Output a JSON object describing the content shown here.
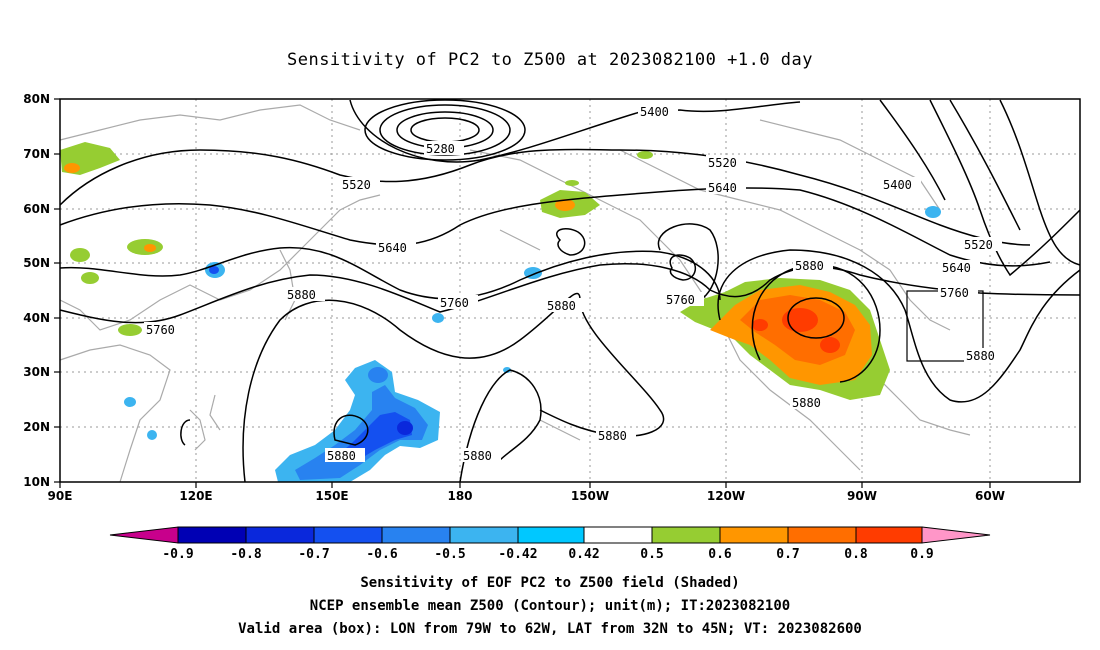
{
  "title": "Sensitivity of PC2 to Z500 at 2023082100 +1.0 day",
  "axes": {
    "lat_labels": [
      "80N",
      "70N",
      "60N",
      "50N",
      "40N",
      "30N",
      "20N",
      "10N"
    ],
    "lon_labels": [
      "90E",
      "120E",
      "150E",
      "180",
      "150W",
      "120W",
      "90W",
      "60W"
    ]
  },
  "contour_labels": [
    "5280",
    "5400",
    "5400",
    "5520",
    "5520",
    "5520",
    "5640",
    "5640",
    "5640",
    "5760",
    "5760",
    "5760",
    "5760",
    "5880",
    "5880",
    "5880",
    "5880",
    "5880",
    "5880",
    "5880",
    "5880"
  ],
  "colorbar": {
    "labels": [
      "-0.9",
      "-0.8",
      "-0.7",
      "-0.6",
      "-0.5",
      "-0.42",
      "0.42",
      "0.5",
      "0.6",
      "0.7",
      "0.8",
      "0.9"
    ],
    "colors": [
      "#c8008c",
      "#0000b4",
      "#0a28dc",
      "#1450f0",
      "#2882f0",
      "#3cb4f0",
      "#00c8ff",
      "#ffffff",
      "#96cd32",
      "#ff9600",
      "#ff6e00",
      "#ff3c00",
      "#ff0000",
      "#ff96c8"
    ]
  },
  "captions": {
    "line1": "Sensitivity of EOF PC2 to Z500 field (Shaded)",
    "line2": "NCEP ensemble mean Z500 (Contour); unit(m); IT:2023082100",
    "line3": "Valid area (box): LON from 79W to 62W, LAT from 32N to 45N; VT: 2023082600"
  }
}
